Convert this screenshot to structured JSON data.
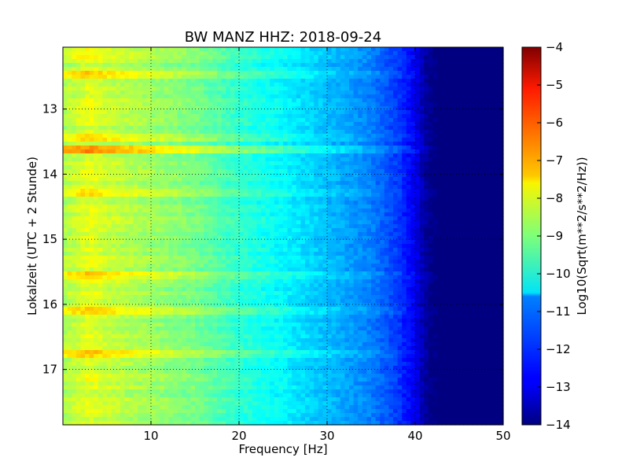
{
  "chart_data": {
    "type": "heatmap",
    "title": "BW MANZ HHZ: 2018-09-24",
    "xlabel": "Frequency [Hz]",
    "ylabel": "Lokalzeit (UTC + 2 Stunde)",
    "xlim": [
      0,
      50
    ],
    "ylim": [
      12.05,
      17.85
    ],
    "y_inverted": true,
    "grid": true,
    "x_ticks": [
      10,
      20,
      30,
      40,
      50
    ],
    "y_ticks": [
      13,
      14,
      15,
      16,
      17
    ],
    "colormap": "jet",
    "colorbar": {
      "label": "Log10(Sqrt(m**2/s**2/Hz))",
      "range": [
        -14,
        -4
      ],
      "ticks": [
        -4,
        -5,
        -6,
        -7,
        -8,
        -9,
        -10,
        -11,
        -12,
        -13,
        -14
      ]
    },
    "spectral_profile": {
      "frequency_hz": [
        0,
        3,
        5,
        10,
        15,
        20,
        25,
        30,
        35,
        38,
        40,
        41,
        42,
        50
      ],
      "log10_amplitude": [
        -8.6,
        -8.0,
        -8.3,
        -8.7,
        -9.1,
        -9.8,
        -10.3,
        -10.9,
        -11.5,
        -12.2,
        -12.9,
        -13.6,
        -14.0,
        -14.0
      ]
    },
    "noise_events": [
      {
        "time_hour": 12.17,
        "f_max_hz": 15,
        "boost": 0.5
      },
      {
        "time_hour": 12.45,
        "f_max_hz": 42,
        "boost": 0.6
      },
      {
        "time_hour": 13.45,
        "f_max_hz": 42,
        "boost": 0.7
      },
      {
        "time_hour": 13.6,
        "f_max_hz": 44,
        "boost": 1.4
      },
      {
        "time_hour": 14.3,
        "f_max_hz": 12,
        "boost": 0.5
      },
      {
        "time_hour": 15.55,
        "f_max_hz": 42,
        "boost": 0.9
      },
      {
        "time_hour": 16.12,
        "f_max_hz": 42,
        "boost": 0.8
      },
      {
        "time_hour": 16.78,
        "f_max_hz": 15,
        "boost": 0.8
      }
    ]
  }
}
